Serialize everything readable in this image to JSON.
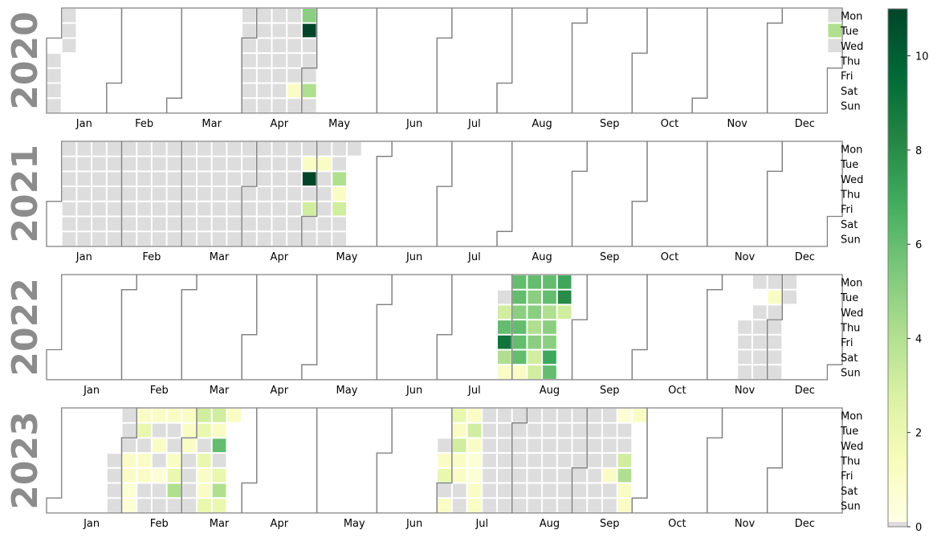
{
  "chart_data": {
    "type": "heatmap",
    "subtype": "calendar",
    "years": [
      {
        "year": "2020",
        "nonzero": {
          "2020-04-27": 5,
          "2020-04-28": 11,
          "2020-05-02": 4,
          "2020-04-25": 1,
          "2020-12-29": 4
        },
        "zero_ranges": [
          [
            "2020-01-06",
            "2020-01-08"
          ],
          [
            "2020-01-02",
            "2020-01-05"
          ],
          [
            "2020-03-30",
            "2020-04-24"
          ],
          [
            "2020-04-26",
            "2020-04-26"
          ],
          [
            "2020-04-29",
            "2020-05-01"
          ],
          [
            "2020-05-03",
            "2020-05-03"
          ],
          [
            "2020-12-28",
            "2020-12-28"
          ],
          [
            "2020-12-30",
            "2020-12-30"
          ]
        ]
      },
      {
        "year": "2021",
        "nonzero": {
          "2021-04-27": 1,
          "2021-04-28": 11,
          "2021-04-30": 3,
          "2021-05-04": 1,
          "2021-05-12": 4,
          "2021-05-13": 1,
          "2021-05-14": 3
        },
        "zero_ranges": [
          [
            "2021-01-04",
            "2021-04-26"
          ],
          [
            "2021-04-29",
            "2021-04-29"
          ],
          [
            "2021-05-01",
            "2021-05-03"
          ],
          [
            "2021-05-05",
            "2021-05-11"
          ],
          [
            "2021-05-15",
            "2021-05-17"
          ]
        ]
      },
      {
        "year": "2022",
        "nonzero": {
          "2022-07-27": 3,
          "2022-07-28": 6,
          "2022-07-29": 9,
          "2022-07-30": 4,
          "2022-07-31": 1,
          "2022-08-01": 6,
          "2022-08-02": 6,
          "2022-08-03": 5,
          "2022-08-04": 6,
          "2022-08-05": 6,
          "2022-08-06": 6,
          "2022-08-07": 1,
          "2022-08-08": 6,
          "2022-08-09": 5,
          "2022-08-10": 5,
          "2022-08-11": 4,
          "2022-08-12": 5,
          "2022-08-13": 3,
          "2022-08-14": 3,
          "2022-08-15": 6,
          "2022-08-16": 6,
          "2022-08-17": 4,
          "2022-08-18": 5,
          "2022-08-19": 5,
          "2022-08-20": 7,
          "2022-08-21": 6,
          "2022-08-22": 7,
          "2022-08-23": 8,
          "2022-08-24": 3,
          "2022-11-29": 1
        },
        "zero_ranges": [
          [
            "2022-07-26",
            "2022-07-26"
          ],
          [
            "2022-11-17",
            "2022-11-20"
          ],
          [
            "2022-11-21",
            "2022-11-21"
          ],
          [
            "2022-11-23",
            "2022-11-27"
          ],
          [
            "2022-11-28",
            "2022-11-28"
          ],
          [
            "2022-11-30",
            "2022-12-06"
          ]
        ]
      },
      {
        "year": "2023",
        "nonzero": {
          "2023-02-02": 1,
          "2023-02-03": 1,
          "2023-02-04": 0.5,
          "2023-02-05": 0.5,
          "2023-02-06": 1,
          "2023-02-07": 2,
          "2023-02-09": 1,
          "2023-02-10": 1,
          "2023-02-13": 1,
          "2023-02-15": 1,
          "2023-02-17": 0.5,
          "2023-02-20": 1,
          "2023-02-23": 1,
          "2023-02-24": 2,
          "2023-02-25": 4,
          "2023-02-27": 1,
          "2023-02-28": 1,
          "2023-03-01": 1,
          "2023-03-06": 3,
          "2023-03-07": 2,
          "2023-03-09": 2,
          "2023-03-10": 1,
          "2023-03-11": 1,
          "2023-03-12": 2,
          "2023-03-13": 3,
          "2023-03-14": 1,
          "2023-03-15": 6,
          "2023-03-17": 2,
          "2023-03-18": 4,
          "2023-03-19": 2,
          "2023-03-20": 1,
          "2023-06-29": 1,
          "2023-06-30": 2,
          "2023-07-02": 1,
          "2023-07-03": 2,
          "2023-07-04": 1,
          "2023-07-05": 3,
          "2023-07-06": 1,
          "2023-07-07": 1,
          "2023-07-10": 1,
          "2023-07-11": 3,
          "2023-07-12": 1,
          "2023-07-13": 0.5,
          "2023-07-14": 0.5,
          "2023-07-15": 1,
          "2023-07-16": 1,
          "2023-09-15": 1,
          "2023-09-18": 0.5,
          "2023-09-21": 3,
          "2023-09-22": 4,
          "2023-09-23": 1,
          "2023-09-24": 1,
          "2023-09-25": 1
        },
        "zero_ranges": [
          [
            "2023-01-26",
            "2023-01-29"
          ],
          [
            "2023-01-30",
            "2023-01-31"
          ],
          [
            "2023-02-01",
            "2023-02-01"
          ],
          [
            "2023-02-08",
            "2023-02-08"
          ],
          [
            "2023-02-11",
            "2023-02-12"
          ],
          [
            "2023-02-14",
            "2023-02-14"
          ],
          [
            "2023-02-16",
            "2023-02-16"
          ],
          [
            "2023-02-18",
            "2023-02-19"
          ],
          [
            "2023-02-21",
            "2023-02-22"
          ],
          [
            "2023-02-26",
            "2023-02-26"
          ],
          [
            "2023-03-02",
            "2023-03-05"
          ],
          [
            "2023-03-08",
            "2023-03-08"
          ],
          [
            "2023-03-16",
            "2023-03-16"
          ],
          [
            "2023-06-28",
            "2023-06-28"
          ],
          [
            "2023-07-01",
            "2023-07-01"
          ],
          [
            "2023-07-08",
            "2023-07-09"
          ],
          [
            "2023-07-17",
            "2023-09-14"
          ],
          [
            "2023-09-16",
            "2023-09-17"
          ],
          [
            "2023-09-19",
            "2023-09-20"
          ]
        ]
      }
    ],
    "weekday_labels": [
      "Mon",
      "Tue",
      "Wed",
      "Thu",
      "Fri",
      "Sat",
      "Sun"
    ],
    "month_labels": [
      "Jan",
      "Feb",
      "Mar",
      "Apr",
      "May",
      "Jun",
      "Jul",
      "Aug",
      "Sep",
      "Oct",
      "Nov",
      "Dec"
    ],
    "colorbar": {
      "vmin": 0,
      "vmax": 11,
      "ticks": [
        0,
        2,
        4,
        6,
        8,
        10
      ],
      "colormap": "YlGn",
      "zero_color": "#dddddd"
    },
    "grid": false,
    "legend": "colorbar-right"
  },
  "colors": {
    "empty_day": "#dddddd",
    "outline": "#808080",
    "year_label": "#8c8c8c"
  }
}
